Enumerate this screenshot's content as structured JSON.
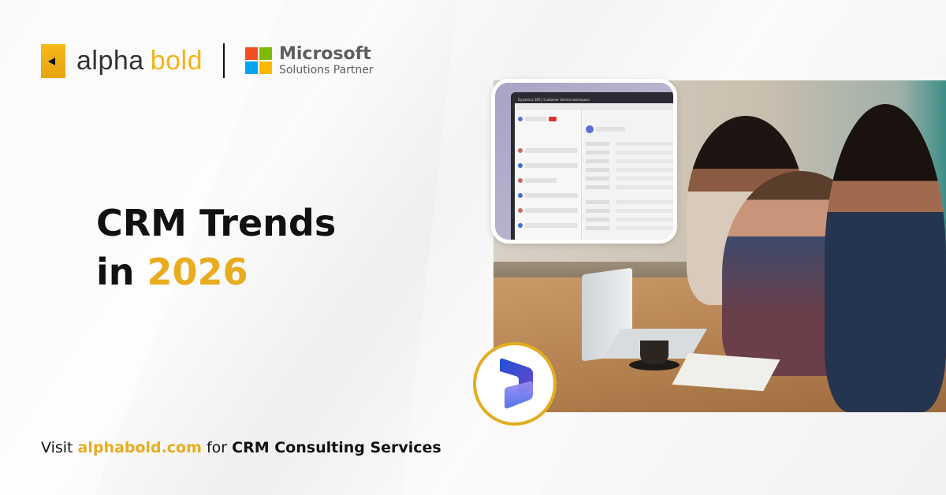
{
  "brand": {
    "alpha": "alpha",
    "bold": "bold",
    "colors": {
      "gold": "#e9ac1f",
      "dark": "#111111"
    }
  },
  "partner": {
    "line1": "Microsoft",
    "line2": "Solutions Partner",
    "colors": [
      "#f25022",
      "#7fba00",
      "#00a4ef",
      "#ffb900"
    ]
  },
  "headline": {
    "line1": "CRM Trends",
    "line2_prefix": "in ",
    "year": "2026"
  },
  "footer": {
    "visit": "Visit ",
    "link": "alphabold.com",
    "middle": " for ",
    "service": "CRM Consulting Services"
  },
  "inset": {
    "app_title": "Dynamics 365 | Customer Service workspace"
  },
  "badge": {
    "icon": "dynamics-365-logo"
  }
}
